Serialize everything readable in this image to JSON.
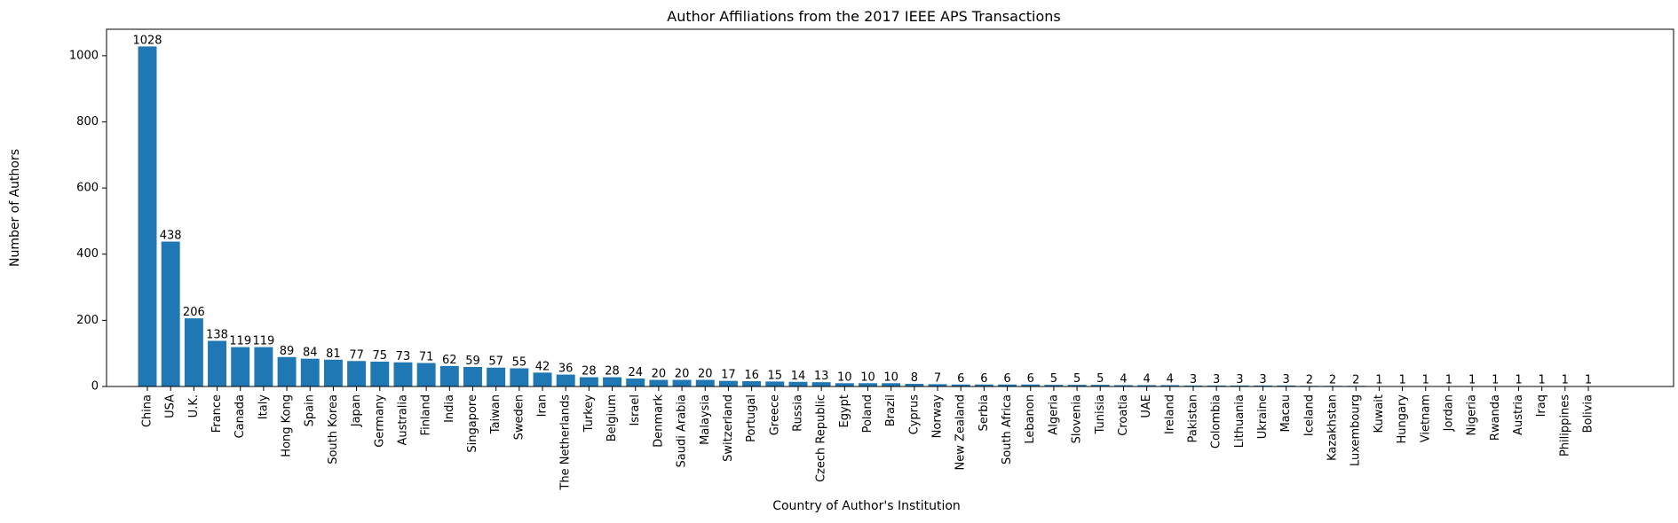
{
  "chart_data": {
    "type": "bar",
    "title": "Author Affiliations from the 2017 IEEE APS Transactions",
    "xlabel": "Country of Author's Institution",
    "ylabel": "Number of Authors",
    "ylim": [
      0,
      1080
    ],
    "yticks": [
      0,
      200,
      400,
      600,
      800,
      1000
    ],
    "grid": false,
    "bar_color": "#1f77b4",
    "categories": [
      "China",
      "USA",
      "U.K.",
      "France",
      "Canada",
      "Italy",
      "Hong Kong",
      "Spain",
      "South Korea",
      "Japan",
      "Germany",
      "Australia",
      "Finland",
      "India",
      "Singapore",
      "Taiwan",
      "Sweden",
      "Iran",
      "The Netherlands",
      "Turkey",
      "Belgium",
      "Israel",
      "Denmark",
      "Saudi Arabia",
      "Malaysia",
      "Switzerland",
      "Portugal",
      "Greece",
      "Russia",
      "Czech Republic",
      "Egypt",
      "Poland",
      "Brazil",
      "Cyprus",
      "Norway",
      "New Zealand",
      "Serbia",
      "South Africa",
      "Lebanon",
      "Algeria",
      "Slovenia",
      "Tunisia",
      "Croatia",
      "UAE",
      "Ireland",
      "Pakistan",
      "Colombia",
      "Lithuania",
      "Ukraine",
      "Macau",
      "Iceland",
      "Kazakhstan",
      "Luxembourg",
      "Kuwait",
      "Hungary",
      "Vietnam",
      "Jordan",
      "Nigeria",
      "Rwanda",
      "Austria",
      "Iraq",
      "Philippines",
      "Bolivia"
    ],
    "values": [
      1028,
      438,
      206,
      138,
      119,
      119,
      89,
      84,
      81,
      77,
      75,
      73,
      71,
      62,
      59,
      57,
      55,
      42,
      36,
      28,
      28,
      24,
      20,
      20,
      20,
      17,
      16,
      15,
      14,
      13,
      10,
      10,
      10,
      8,
      7,
      6,
      6,
      6,
      6,
      5,
      5,
      5,
      4,
      4,
      4,
      3,
      3,
      3,
      3,
      3,
      2,
      2,
      2,
      1,
      1,
      1,
      1,
      1,
      1,
      1,
      1,
      1,
      1
    ]
  }
}
